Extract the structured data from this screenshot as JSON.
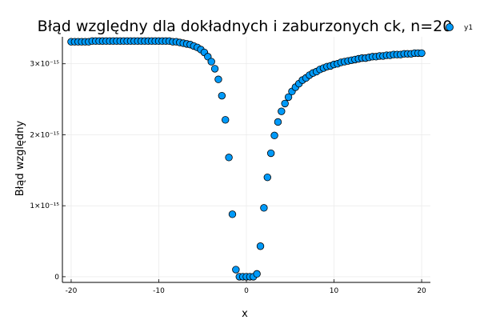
{
  "chart_data": {
    "type": "scatter",
    "title": "Błąd względny dla dokładnych i zaburzonych ck, n=20",
    "xlabel": "x",
    "ylabel": "Błąd względny",
    "xlim": [
      -21,
      21
    ],
    "ylim": [
      -0.08,
      3.38
    ],
    "y_unit_exponent": -15,
    "grid": true,
    "legend_placement": "top-right",
    "x_ticks": [
      {
        "value": -20,
        "label": "-20"
      },
      {
        "value": -10,
        "label": "-10"
      },
      {
        "value": 0,
        "label": "0"
      },
      {
        "value": 10,
        "label": "10"
      },
      {
        "value": 20,
        "label": "20"
      }
    ],
    "y_ticks": [
      {
        "value": 0,
        "label": "0"
      },
      {
        "value": 1,
        "label": "1×10⁻¹⁵"
      },
      {
        "value": 2,
        "label": "2×10⁻¹⁵"
      },
      {
        "value": 3,
        "label": "3×10⁻¹⁵"
      }
    ],
    "series": [
      {
        "name": "y1",
        "color": "#009AF9",
        "edge_color": "#000000",
        "x": [
          -20.0,
          -19.6,
          -19.2,
          -18.8,
          -18.4,
          -18.0,
          -17.6,
          -17.2,
          -16.8,
          -16.4,
          -16.0,
          -15.6,
          -15.2,
          -14.8,
          -14.4,
          -14.0,
          -13.6,
          -13.2,
          -12.8,
          -12.4,
          -12.0,
          -11.6,
          -11.2,
          -10.8,
          -10.4,
          -10.0,
          -9.6,
          -9.2,
          -8.8,
          -8.4,
          -8.0,
          -7.6,
          -7.2,
          -6.8,
          -6.4,
          -6.0,
          -5.6,
          -5.2,
          -4.8,
          -4.4,
          -4.0,
          -3.6,
          -3.2,
          -2.8,
          -2.4,
          -2.0,
          -1.6,
          -1.2,
          -0.8,
          -0.4,
          0.0,
          0.4,
          0.8,
          1.2,
          1.6,
          2.0,
          2.4,
          2.8,
          3.2,
          3.6,
          4.0,
          4.4,
          4.8,
          5.2,
          5.6,
          6.0,
          6.4,
          6.8,
          7.2,
          7.6,
          8.0,
          8.4,
          8.8,
          9.2,
          9.6,
          10.0,
          10.4,
          10.8,
          11.2,
          11.6,
          12.0,
          12.4,
          12.8,
          13.2,
          13.6,
          14.0,
          14.4,
          14.8,
          15.2,
          15.6,
          16.0,
          16.4,
          16.8,
          17.2,
          17.6,
          18.0,
          18.4,
          18.8,
          19.2,
          19.6,
          20.0
        ],
        "y": [
          3.31,
          3.31,
          3.31,
          3.31,
          3.31,
          3.31,
          3.32,
          3.32,
          3.32,
          3.32,
          3.32,
          3.32,
          3.32,
          3.32,
          3.32,
          3.32,
          3.32,
          3.32,
          3.32,
          3.32,
          3.32,
          3.32,
          3.32,
          3.32,
          3.32,
          3.32,
          3.32,
          3.32,
          3.32,
          3.31,
          3.31,
          3.3,
          3.29,
          3.28,
          3.27,
          3.25,
          3.23,
          3.2,
          3.16,
          3.1,
          3.03,
          2.93,
          2.78,
          2.55,
          2.21,
          1.68,
          0.88,
          0.1,
          0.0,
          0.0,
          0.0,
          0.0,
          0.0,
          0.04,
          0.43,
          0.97,
          1.4,
          1.74,
          1.99,
          2.18,
          2.33,
          2.44,
          2.53,
          2.61,
          2.67,
          2.72,
          2.77,
          2.8,
          2.84,
          2.87,
          2.89,
          2.92,
          2.94,
          2.96,
          2.97,
          2.99,
          3.0,
          3.02,
          3.03,
          3.04,
          3.05,
          3.06,
          3.07,
          3.08,
          3.08,
          3.09,
          3.1,
          3.1,
          3.11,
          3.11,
          3.12,
          3.12,
          3.13,
          3.13,
          3.13,
          3.14,
          3.14,
          3.14,
          3.15,
          3.15,
          3.15
        ]
      }
    ]
  }
}
